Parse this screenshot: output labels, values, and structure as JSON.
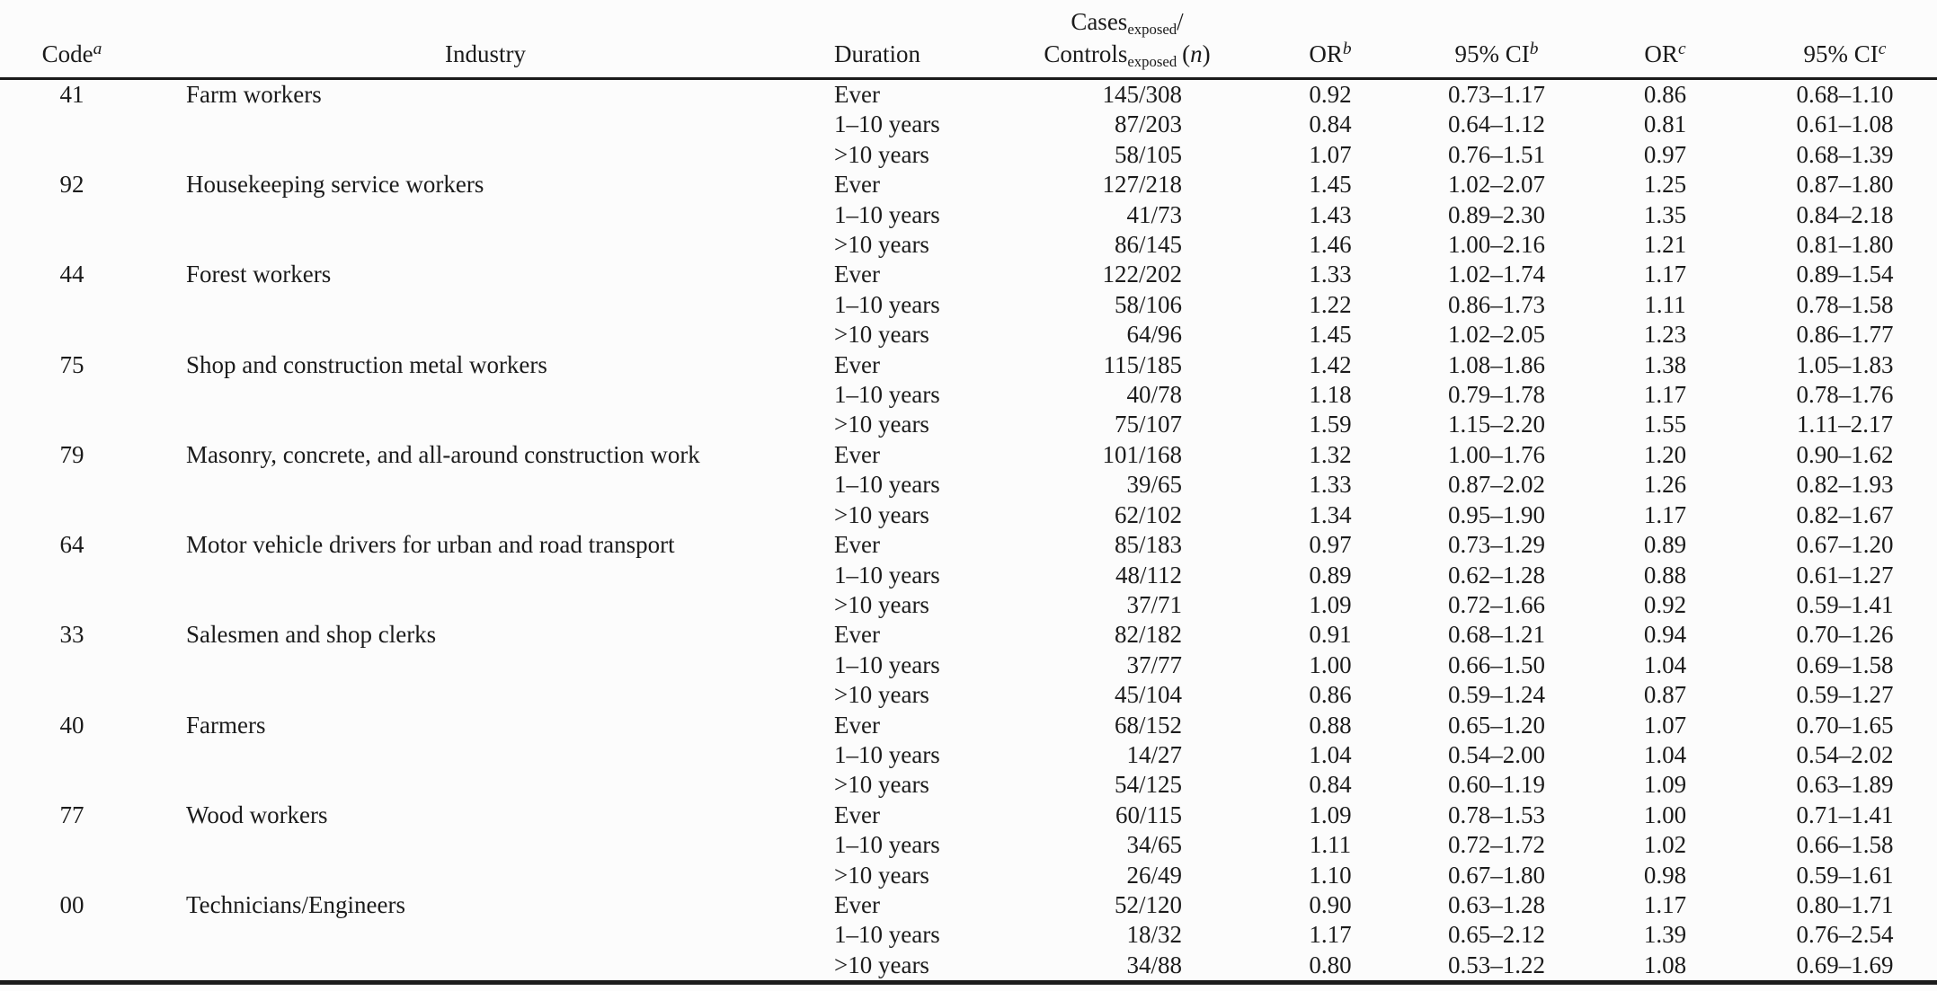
{
  "page": {
    "ink_color": "#1b1b1b",
    "paper_color": "#fcfcfc"
  },
  "table": {
    "header": {
      "code_label": "Code",
      "code_sup": "a",
      "industry_label": "Industry",
      "duration_label": "Duration",
      "cases_word": "Cases",
      "cases_sub": "exposed",
      "cases_slash": "/",
      "controls_word": "Controls",
      "controls_sub": "exposed",
      "n_open": "(",
      "n_symbol": "n",
      "n_close": ")",
      "or_label": "OR",
      "ci_label": "95% CI",
      "sup_b": "b",
      "sup_c": "c"
    },
    "groups": [
      {
        "code": "41",
        "industry": "Farm workers",
        "rows": [
          {
            "duration": "Ever",
            "cases": "145/308",
            "or_b": "0.92",
            "ci_b": "0.73–1.17",
            "or_c": "0.86",
            "ci_c": "0.68–1.10"
          },
          {
            "duration": "1–10 years",
            "cases": "87/203",
            "or_b": "0.84",
            "ci_b": "0.64–1.12",
            "or_c": "0.81",
            "ci_c": "0.61–1.08"
          },
          {
            "duration": ">10 years",
            "cases": "58/105",
            "or_b": "1.07",
            "ci_b": "0.76–1.51",
            "or_c": "0.97",
            "ci_c": "0.68–1.39"
          }
        ]
      },
      {
        "code": "92",
        "industry": "Housekeeping service workers",
        "rows": [
          {
            "duration": "Ever",
            "cases": "127/218",
            "or_b": "1.45",
            "ci_b": "1.02–2.07",
            "or_c": "1.25",
            "ci_c": "0.87–1.80"
          },
          {
            "duration": "1–10 years",
            "cases": "41/73",
            "or_b": "1.43",
            "ci_b": "0.89–2.30",
            "or_c": "1.35",
            "ci_c": "0.84–2.18"
          },
          {
            "duration": ">10 years",
            "cases": "86/145",
            "or_b": "1.46",
            "ci_b": "1.00–2.16",
            "or_c": "1.21",
            "ci_c": "0.81–1.80"
          }
        ]
      },
      {
        "code": "44",
        "industry": "Forest workers",
        "rows": [
          {
            "duration": "Ever",
            "cases": "122/202",
            "or_b": "1.33",
            "ci_b": "1.02–1.74",
            "or_c": "1.17",
            "ci_c": "0.89–1.54"
          },
          {
            "duration": "1–10 years",
            "cases": "58/106",
            "or_b": "1.22",
            "ci_b": "0.86–1.73",
            "or_c": "1.11",
            "ci_c": "0.78–1.58"
          },
          {
            "duration": ">10 years",
            "cases": "64/96",
            "or_b": "1.45",
            "ci_b": "1.02–2.05",
            "or_c": "1.23",
            "ci_c": "0.86–1.77"
          }
        ]
      },
      {
        "code": "75",
        "industry": "Shop and construction metal workers",
        "rows": [
          {
            "duration": "Ever",
            "cases": "115/185",
            "or_b": "1.42",
            "ci_b": "1.08–1.86",
            "or_c": "1.38",
            "ci_c": "1.05–1.83"
          },
          {
            "duration": "1–10 years",
            "cases": "40/78",
            "or_b": "1.18",
            "ci_b": "0.79–1.78",
            "or_c": "1.17",
            "ci_c": "0.78–1.76"
          },
          {
            "duration": ">10 years",
            "cases": "75/107",
            "or_b": "1.59",
            "ci_b": "1.15–2.20",
            "or_c": "1.55",
            "ci_c": "1.11–2.17"
          }
        ]
      },
      {
        "code": "79",
        "industry": "Masonry, concrete, and all-around construction work",
        "rows": [
          {
            "duration": "Ever",
            "cases": "101/168",
            "or_b": "1.32",
            "ci_b": "1.00–1.76",
            "or_c": "1.20",
            "ci_c": "0.90–1.62"
          },
          {
            "duration": "1–10 years",
            "cases": "39/65",
            "or_b": "1.33",
            "ci_b": "0.87–2.02",
            "or_c": "1.26",
            "ci_c": "0.82–1.93"
          },
          {
            "duration": ">10 years",
            "cases": "62/102",
            "or_b": "1.34",
            "ci_b": "0.95–1.90",
            "or_c": "1.17",
            "ci_c": "0.82–1.67"
          }
        ]
      },
      {
        "code": "64",
        "industry": "Motor vehicle drivers for urban and road transport",
        "rows": [
          {
            "duration": "Ever",
            "cases": "85/183",
            "or_b": "0.97",
            "ci_b": "0.73–1.29",
            "or_c": "0.89",
            "ci_c": "0.67–1.20"
          },
          {
            "duration": "1–10 years",
            "cases": "48/112",
            "or_b": "0.89",
            "ci_b": "0.62–1.28",
            "or_c": "0.88",
            "ci_c": "0.61–1.27"
          },
          {
            "duration": ">10 years",
            "cases": "37/71",
            "or_b": "1.09",
            "ci_b": "0.72–1.66",
            "or_c": "0.92",
            "ci_c": "0.59–1.41"
          }
        ]
      },
      {
        "code": "33",
        "industry": "Salesmen and shop clerks",
        "rows": [
          {
            "duration": "Ever",
            "cases": "82/182",
            "or_b": "0.91",
            "ci_b": "0.68–1.21",
            "or_c": "0.94",
            "ci_c": "0.70–1.26"
          },
          {
            "duration": "1–10 years",
            "cases": "37/77",
            "or_b": "1.00",
            "ci_b": "0.66–1.50",
            "or_c": "1.04",
            "ci_c": "0.69–1.58"
          },
          {
            "duration": ">10 years",
            "cases": "45/104",
            "or_b": "0.86",
            "ci_b": "0.59–1.24",
            "or_c": "0.87",
            "ci_c": "0.59–1.27"
          }
        ]
      },
      {
        "code": "40",
        "industry": "Farmers",
        "rows": [
          {
            "duration": "Ever",
            "cases": "68/152",
            "or_b": "0.88",
            "ci_b": "0.65–1.20",
            "or_c": "1.07",
            "ci_c": "0.70–1.65"
          },
          {
            "duration": "1–10 years",
            "cases": "14/27",
            "or_b": "1.04",
            "ci_b": "0.54–2.00",
            "or_c": "1.04",
            "ci_c": "0.54–2.02"
          },
          {
            "duration": ">10 years",
            "cases": "54/125",
            "or_b": "0.84",
            "ci_b": "0.60–1.19",
            "or_c": "1.09",
            "ci_c": "0.63–1.89"
          }
        ]
      },
      {
        "code": "77",
        "industry": "Wood workers",
        "rows": [
          {
            "duration": "Ever",
            "cases": "60/115",
            "or_b": "1.09",
            "ci_b": "0.78–1.53",
            "or_c": "1.00",
            "ci_c": "0.71–1.41"
          },
          {
            "duration": "1–10 years",
            "cases": "34/65",
            "or_b": "1.11",
            "ci_b": "0.72–1.72",
            "or_c": "1.02",
            "ci_c": "0.66–1.58"
          },
          {
            "duration": ">10 years",
            "cases": "26/49",
            "or_b": "1.10",
            "ci_b": "0.67–1.80",
            "or_c": "0.98",
            "ci_c": "0.59–1.61"
          }
        ]
      },
      {
        "code": "00",
        "industry": "Technicians/Engineers",
        "rows": [
          {
            "duration": "Ever",
            "cases": "52/120",
            "or_b": "0.90",
            "ci_b": "0.63–1.28",
            "or_c": "1.17",
            "ci_c": "0.80–1.71"
          },
          {
            "duration": "1–10 years",
            "cases": "18/32",
            "or_b": "1.17",
            "ci_b": "0.65–2.12",
            "or_c": "1.39",
            "ci_c": "0.76–2.54"
          },
          {
            "duration": ">10 years",
            "cases": "34/88",
            "or_b": "0.80",
            "ci_b": "0.53–1.22",
            "or_c": "1.08",
            "ci_c": "0.69–1.69"
          }
        ]
      }
    ]
  }
}
